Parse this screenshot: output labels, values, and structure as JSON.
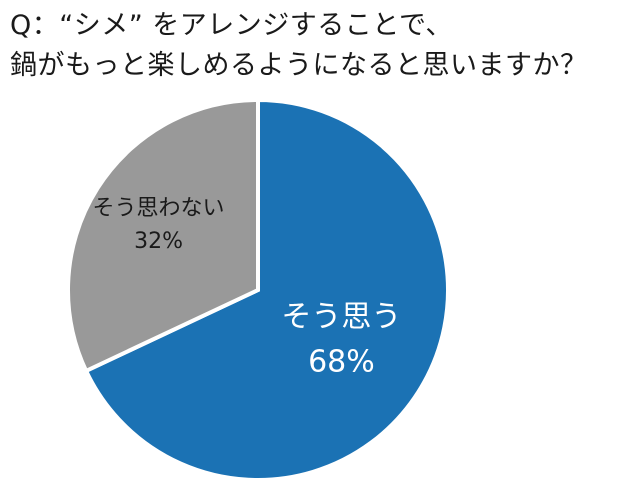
{
  "title_lines": [
    "Q：“シメ” をアレンジすることで、",
    "鍋がもっと楽しめるようになると思いますか？"
  ],
  "chart_data": {
    "type": "pie",
    "title": "Q：“シメ” をアレンジすることで、鍋がもっと楽しめるようになると思いますか？",
    "slices": [
      {
        "label": "そう思う",
        "value": 68,
        "value_label": "68%",
        "color": "#1b72b4",
        "label_color": "#ffffff"
      },
      {
        "label": "そう思わない",
        "value": 32,
        "value_label": "32%",
        "color": "#999999",
        "label_color": "#1a1a1a"
      }
    ],
    "start_angle": "12 o'clock",
    "direction": "clockwise",
    "stroke": "#ffffff"
  }
}
